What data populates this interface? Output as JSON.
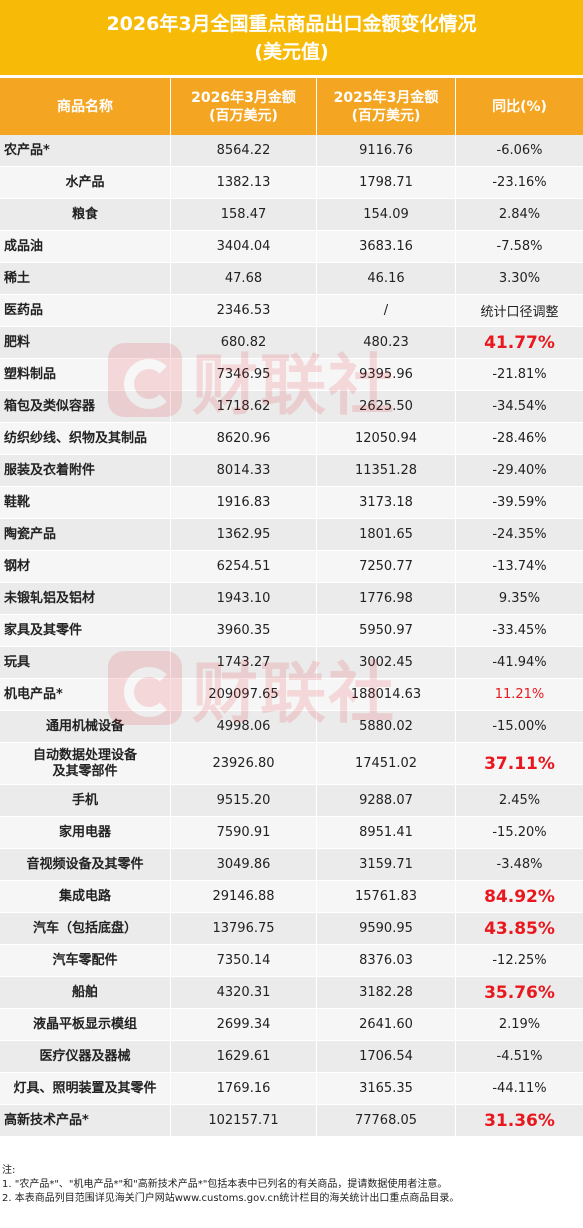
{
  "title": {
    "line1": "2026年3月全国重点商品出口金额变化情况",
    "line2": "(美元值)"
  },
  "headers": {
    "name": "商品名称",
    "cur_line1": "2026年3月金额",
    "cur_line2": "(百万美元)",
    "prev_line1": "2025年3月金额",
    "prev_line2": "(百万美元)",
    "yoy": "同比(%)"
  },
  "rows": [
    {
      "name": "农产品*",
      "cur": "8564.22",
      "prev": "9116.76",
      "yoy": "-6.06%"
    },
    {
      "name": "水产品",
      "cur": "1382.13",
      "prev": "1798.71",
      "yoy": "-23.16%"
    },
    {
      "name": "粮食",
      "cur": "158.47",
      "prev": "154.09",
      "yoy": "2.84%"
    },
    {
      "name": "成品油",
      "cur": "3404.04",
      "prev": "3683.16",
      "yoy": "-7.58%"
    },
    {
      "name": "稀土",
      "cur": "47.68",
      "prev": "46.16",
      "yoy": "3.30%"
    },
    {
      "name": "医药品",
      "cur": "2346.53",
      "prev": "/",
      "yoy": "统计口径调整"
    },
    {
      "name": "肥料",
      "cur": "680.82",
      "prev": "480.23",
      "yoy": "41.77%"
    },
    {
      "name": "塑料制品",
      "cur": "7346.95",
      "prev": "9395.96",
      "yoy": "-21.81%"
    },
    {
      "name": "箱包及类似容器",
      "cur": "1718.62",
      "prev": "2625.50",
      "yoy": "-34.54%"
    },
    {
      "name": "纺织纱线、织物及其制品",
      "cur": "8620.96",
      "prev": "12050.94",
      "yoy": "-28.46%"
    },
    {
      "name": "服装及衣着附件",
      "cur": "8014.33",
      "prev": "11351.28",
      "yoy": "-29.40%"
    },
    {
      "name": "鞋靴",
      "cur": "1916.83",
      "prev": "3173.18",
      "yoy": "-39.59%"
    },
    {
      "name": "陶瓷产品",
      "cur": "1362.95",
      "prev": "1801.65",
      "yoy": "-24.35%"
    },
    {
      "name": "钢材",
      "cur": "6254.51",
      "prev": "7250.77",
      "yoy": "-13.74%"
    },
    {
      "name": "未锻轧铝及铝材",
      "cur": "1943.10",
      "prev": "1776.98",
      "yoy": "9.35%"
    },
    {
      "name": "家具及其零件",
      "cur": "3960.35",
      "prev": "5950.97",
      "yoy": "-33.45%"
    },
    {
      "name": "玩具",
      "cur": "1743.27",
      "prev": "3002.45",
      "yoy": "-41.94%"
    },
    {
      "name": "机电产品*",
      "cur": "209097.65",
      "prev": "188014.63",
      "yoy": "11.21%"
    },
    {
      "name": "通用机械设备",
      "cur": "4998.06",
      "prev": "5880.02",
      "yoy": "-15.00%"
    },
    {
      "name": "自动数据处理设备",
      "name2": "及其零部件",
      "cur": "23926.80",
      "prev": "17451.02",
      "yoy": "37.11%"
    },
    {
      "name": "手机",
      "cur": "9515.20",
      "prev": "9288.07",
      "yoy": "2.45%"
    },
    {
      "name": "家用电器",
      "cur": "7590.91",
      "prev": "8951.41",
      "yoy": "-15.20%"
    },
    {
      "name": "音视频设备及其零件",
      "cur": "3049.86",
      "prev": "3159.71",
      "yoy": "-3.48%"
    },
    {
      "name": "集成电路",
      "cur": "29146.88",
      "prev": "15761.83",
      "yoy": "84.92%"
    },
    {
      "name": "汽车（包括底盘）",
      "cur": "13796.75",
      "prev": "9590.95",
      "yoy": "43.85%"
    },
    {
      "name": "汽车零配件",
      "cur": "7350.14",
      "prev": "8376.03",
      "yoy": "-12.25%"
    },
    {
      "name": "船舶",
      "cur": "4320.31",
      "prev": "3182.28",
      "yoy": "35.76%"
    },
    {
      "name": "液晶平板显示模组",
      "cur": "2699.34",
      "prev": "2641.60",
      "yoy": "2.19%"
    },
    {
      "name": "医疗仪器及器械",
      "cur": "1629.61",
      "prev": "1706.54",
      "yoy": "-4.51%"
    },
    {
      "name": "灯具、照明装置及其零件",
      "cur": "1769.16",
      "prev": "3165.35",
      "yoy": "-44.11%"
    },
    {
      "name": "高新技术产品*",
      "cur": "102157.71",
      "prev": "77768.05",
      "yoy": "31.36%"
    }
  ],
  "watermark": {
    "text": "财联社"
  },
  "notes": {
    "label": "注:",
    "line1": "1. \"农产品*\"、\"机电产品*\"和\"高新技术产品*\"包括本表中已列名的有关商品，提请数据使用者注意。",
    "line2": "2. 本表商品列目范围详见海关门户网站www.customs.gov.cn统计栏目的海关统计出口重点商品目录。"
  },
  "colors": {
    "title_bg": "#f7bb07",
    "header_bg": "#f4a522",
    "highlight": "#e8181e"
  }
}
